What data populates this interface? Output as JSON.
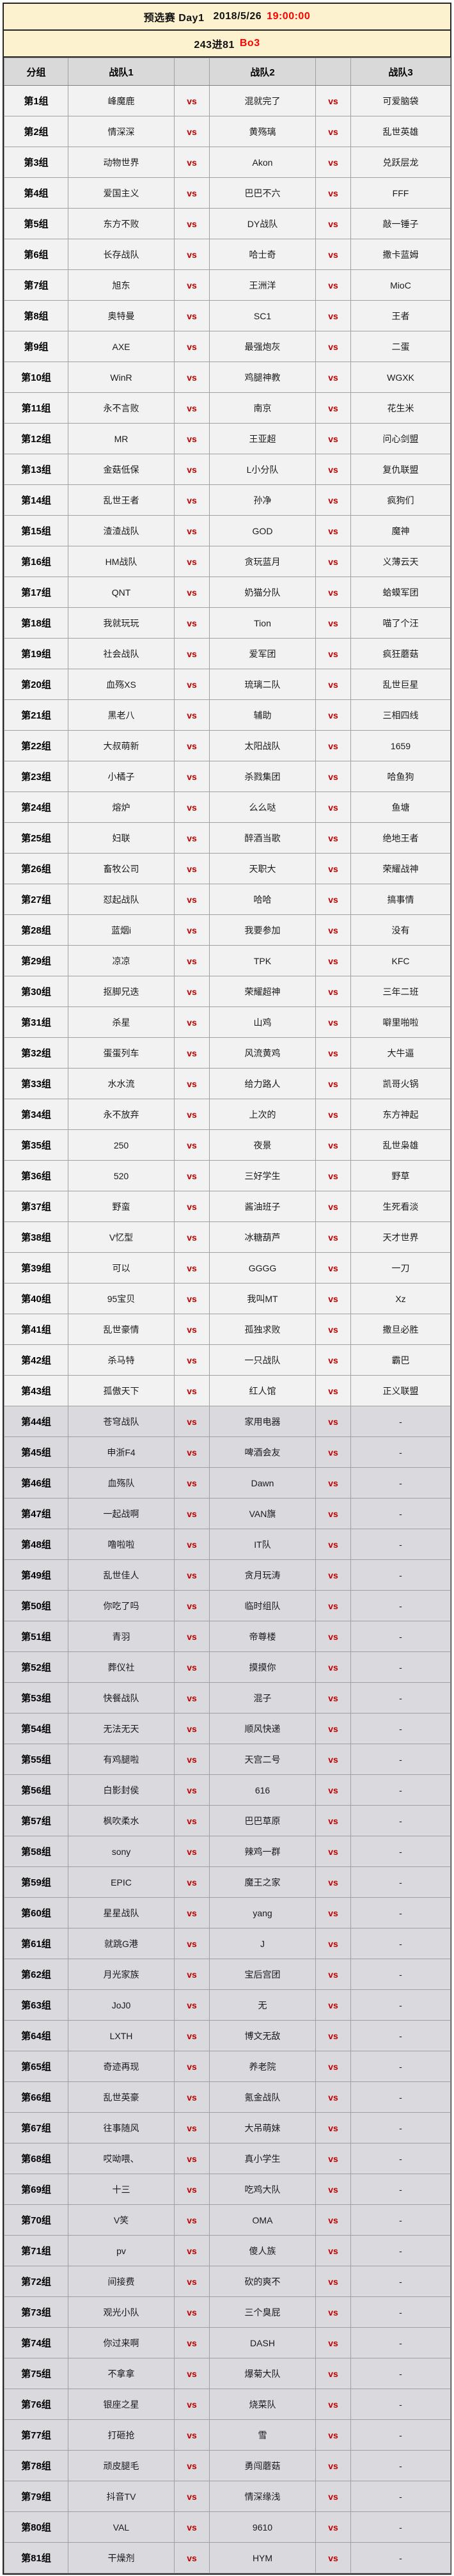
{
  "title": {
    "text": "预选赛 Day1",
    "date": "2018/5/26",
    "time": "19:00:00"
  },
  "subtitle": {
    "text": "243进81",
    "format": "Bo3"
  },
  "columns": {
    "group": "分组",
    "team1": "战队1",
    "team2": "战队2",
    "team3": "战队3"
  },
  "vs_label": "vs",
  "colors": {
    "title_bg": "#fdf2cf",
    "header_bg": "#d9d9d9",
    "row_bg": "#f2f2f2",
    "shaded_row_bg": "#d9d9de",
    "accent_red": "#ff0000",
    "vs_red": "#c00000",
    "outer_border": "#262626",
    "grid_line": "#a0a0a0"
  },
  "groups": [
    {
      "group": "第1组",
      "team1": "峰魔鹿",
      "team2": "混就完了",
      "team3": "可爱脑袋"
    },
    {
      "group": "第2组",
      "team1": "情深深",
      "team2": "黄殇璃",
      "team3": "乱世英雄"
    },
    {
      "group": "第3组",
      "team1": "动物世界",
      "team2": "Akon",
      "team3": "兑跃层龙"
    },
    {
      "group": "第4组",
      "team1": "爱国主义",
      "team2": "巴巴不六",
      "team3": "FFF"
    },
    {
      "group": "第5组",
      "team1": "东方不败",
      "team2": "DY战队",
      "team3": "敲一锤子"
    },
    {
      "group": "第6组",
      "team1": "长存战队",
      "team2": "哈士奇",
      "team3": "撒卡蓝姆"
    },
    {
      "group": "第7组",
      "team1": "旭东",
      "team2": "王洲洋",
      "team3": "MioC"
    },
    {
      "group": "第8组",
      "team1": "奥特曼",
      "team2": "SC1",
      "team3": "王者"
    },
    {
      "group": "第9组",
      "team1": "AXE",
      "team2": "最强炮灰",
      "team3": "二蛋"
    },
    {
      "group": "第10组",
      "team1": "WinR",
      "team2": "鸡腿神教",
      "team3": "WGXK"
    },
    {
      "group": "第11组",
      "team1": "永不言败",
      "team2": "南京",
      "team3": "花生米"
    },
    {
      "group": "第12组",
      "team1": "MR",
      "team2": "王亚超",
      "team3": "问心剑盟"
    },
    {
      "group": "第13组",
      "team1": "金菇低保",
      "team2": "L小分队",
      "team3": "复仇联盟"
    },
    {
      "group": "第14组",
      "team1": "乱世王者",
      "team2": "孙净",
      "team3": "疯狗们"
    },
    {
      "group": "第15组",
      "team1": "渣渣战队",
      "team2": "GOD",
      "team3": "魔神"
    },
    {
      "group": "第16组",
      "team1": "HM战队",
      "team2": "贪玩蓝月",
      "team3": "义薄云天"
    },
    {
      "group": "第17组",
      "team1": "QNT",
      "team2": "奶猫分队",
      "team3": "蛤蟆军团"
    },
    {
      "group": "第18组",
      "team1": "我就玩玩",
      "team2": "Tion",
      "team3": "喵了个汪"
    },
    {
      "group": "第19组",
      "team1": "社会战队",
      "team2": "爱军团",
      "team3": "疯狂蘑菇"
    },
    {
      "group": "第20组",
      "team1": "血殇XS",
      "team2": "琉璃二队",
      "team3": "乱世巨星"
    },
    {
      "group": "第21组",
      "team1": "黑老八",
      "team2": "辅助",
      "team3": "三相四线"
    },
    {
      "group": "第22组",
      "team1": "大叔萌新",
      "team2": "太阳战队",
      "team3": "1659"
    },
    {
      "group": "第23组",
      "team1": "小橘子",
      "team2": "杀戮集团",
      "team3": "哈鱼狗"
    },
    {
      "group": "第24组",
      "team1": "熔炉",
      "team2": "么么哒",
      "team3": "鱼塘"
    },
    {
      "group": "第25组",
      "team1": "妇联",
      "team2": "醉酒当歌",
      "team3": "绝地王者"
    },
    {
      "group": "第26组",
      "team1": "畜牧公司",
      "team2": "天职大",
      "team3": "荣耀战神"
    },
    {
      "group": "第27组",
      "team1": "怼起战队",
      "team2": "哈哈",
      "team3": "搞事情"
    },
    {
      "group": "第28组",
      "team1": "蓝烟i",
      "team2": "我要参加",
      "team3": "没有"
    },
    {
      "group": "第29组",
      "team1": "凉凉",
      "team2": "TPK",
      "team3": "KFC"
    },
    {
      "group": "第30组",
      "team1": "抠脚兄迭",
      "team2": "荣耀超神",
      "team3": "三年二班"
    },
    {
      "group": "第31组",
      "team1": "杀星",
      "team2": "山鸡",
      "team3": "噼里啪啦"
    },
    {
      "group": "第32组",
      "team1": "蛋蛋列车",
      "team2": "风流黄鸡",
      "team3": "大牛逼"
    },
    {
      "group": "第33组",
      "team1": "水水流",
      "team2": "给力路人",
      "team3": "凯哥火锅"
    },
    {
      "group": "第34组",
      "team1": "永不放弃",
      "team2": "上次的",
      "team3": "东方神起"
    },
    {
      "group": "第35组",
      "team1": "250",
      "team2": "夜景",
      "team3": "乱世枭雄"
    },
    {
      "group": "第36组",
      "team1": "520",
      "team2": "三好学生",
      "team3": "野草"
    },
    {
      "group": "第37组",
      "team1": "野蛮",
      "team2": "酱油班子",
      "team3": "生死看淡"
    },
    {
      "group": "第38组",
      "team1": "V忆型",
      "team2": "冰糖葫芦",
      "team3": "天才世界"
    },
    {
      "group": "第39组",
      "team1": "可以",
      "team2": "GGGG",
      "team3": "一刀"
    },
    {
      "group": "第40组",
      "team1": "95宝贝",
      "team2": "我叫MT",
      "team3": "Xz"
    },
    {
      "group": "第41组",
      "team1": "乱世豪情",
      "team2": "孤独求败",
      "team3": "撒旦必胜"
    },
    {
      "group": "第42组",
      "team1": "杀马特",
      "team2": "一只战队",
      "team3": "霸巴"
    },
    {
      "group": "第43组",
      "team1": "孤傲天下",
      "team2": "红人馆",
      "team3": "正义联盟"
    },
    {
      "group": "第44组",
      "team1": "苍穹战队",
      "team2": "家用电器",
      "team3": "-"
    },
    {
      "group": "第45组",
      "team1": "申浙F4",
      "team2": "啤酒会友",
      "team3": "-"
    },
    {
      "group": "第46组",
      "team1": "血殇队",
      "team2": "Dawn",
      "team3": "-"
    },
    {
      "group": "第47组",
      "team1": "一起战啊",
      "team2": "VAN旗",
      "team3": "-"
    },
    {
      "group": "第48组",
      "team1": "噜啦啦",
      "team2": "IT队",
      "team3": "-"
    },
    {
      "group": "第49组",
      "team1": "乱世佳人",
      "team2": "贪月玩涛",
      "team3": "-"
    },
    {
      "group": "第50组",
      "team1": "你吃了吗",
      "team2": "临时组队",
      "team3": "-"
    },
    {
      "group": "第51组",
      "team1": "青羽",
      "team2": "帝尊楼",
      "team3": "-"
    },
    {
      "group": "第52组",
      "team1": "葬仪社",
      "team2": "摸摸你",
      "team3": "-"
    },
    {
      "group": "第53组",
      "team1": "快餐战队",
      "team2": "混子",
      "team3": "-"
    },
    {
      "group": "第54组",
      "team1": "无法无天",
      "team2": "顺风快递",
      "team3": "-"
    },
    {
      "group": "第55组",
      "team1": "有鸡腿啦",
      "team2": "天宫二号",
      "team3": "-"
    },
    {
      "group": "第56组",
      "team1": "白影封侯",
      "team2": "616",
      "team3": "-"
    },
    {
      "group": "第57组",
      "team1": "枫吹柔水",
      "team2": "巴巴草原",
      "team3": "-"
    },
    {
      "group": "第58组",
      "team1": "sony",
      "team2": "辣鸡一群",
      "team3": "-"
    },
    {
      "group": "第59组",
      "team1": "EPIC",
      "team2": "魔王之家",
      "team3": "-"
    },
    {
      "group": "第60组",
      "team1": "星星战队",
      "team2": "yang",
      "team3": "-"
    },
    {
      "group": "第61组",
      "team1": "就跳G港",
      "team2": "J",
      "team3": "-"
    },
    {
      "group": "第62组",
      "team1": "月光家族",
      "team2": "宝后宫团",
      "team3": "-"
    },
    {
      "group": "第63组",
      "team1": "JoJ0",
      "team2": "无",
      "team3": "-"
    },
    {
      "group": "第64组",
      "team1": "LXTH",
      "team2": "博文无敌",
      "team3": "-"
    },
    {
      "group": "第65组",
      "team1": "奇迹再现",
      "team2": "养老院",
      "team3": "-"
    },
    {
      "group": "第66组",
      "team1": "乱世英豪",
      "team2": "氪金战队",
      "team3": "-"
    },
    {
      "group": "第67组",
      "team1": "往事随风",
      "team2": "大吊萌妹",
      "team3": "-"
    },
    {
      "group": "第68组",
      "team1": "哎呦喂、",
      "team2": "真小学生",
      "team3": "-"
    },
    {
      "group": "第69组",
      "team1": "十三",
      "team2": "吃鸡大队",
      "team3": "-"
    },
    {
      "group": "第70组",
      "team1": "V笑",
      "team2": "OMA",
      "team3": "-"
    },
    {
      "group": "第71组",
      "team1": "pv",
      "team2": "傻人族",
      "team3": "-"
    },
    {
      "group": "第72组",
      "team1": "间接费",
      "team2": "砍的爽不",
      "team3": "-"
    },
    {
      "group": "第73组",
      "team1": "观光小队",
      "team2": "三个臭屁",
      "team3": "-"
    },
    {
      "group": "第74组",
      "team1": "你过来啊",
      "team2": "DASH",
      "team3": "-"
    },
    {
      "group": "第75组",
      "team1": "不拿拿",
      "team2": "爆菊大队",
      "team3": "-"
    },
    {
      "group": "第76组",
      "team1": "银座之星",
      "team2": "烧菜队",
      "team3": "-"
    },
    {
      "group": "第77组",
      "team1": "打砸抢",
      "team2": "雪",
      "team3": "-"
    },
    {
      "group": "第78组",
      "team1": "顽皮腿毛",
      "team2": "勇闯蘑菇",
      "team3": "-"
    },
    {
      "group": "第79组",
      "team1": "抖音TV",
      "team2": "情深缘浅",
      "team3": "-"
    },
    {
      "group": "第80组",
      "team1": "VAL",
      "team2": "9610",
      "team3": "-"
    },
    {
      "group": "第81组",
      "team1": "干燥剂",
      "team2": "HYM",
      "team3": "-"
    }
  ]
}
